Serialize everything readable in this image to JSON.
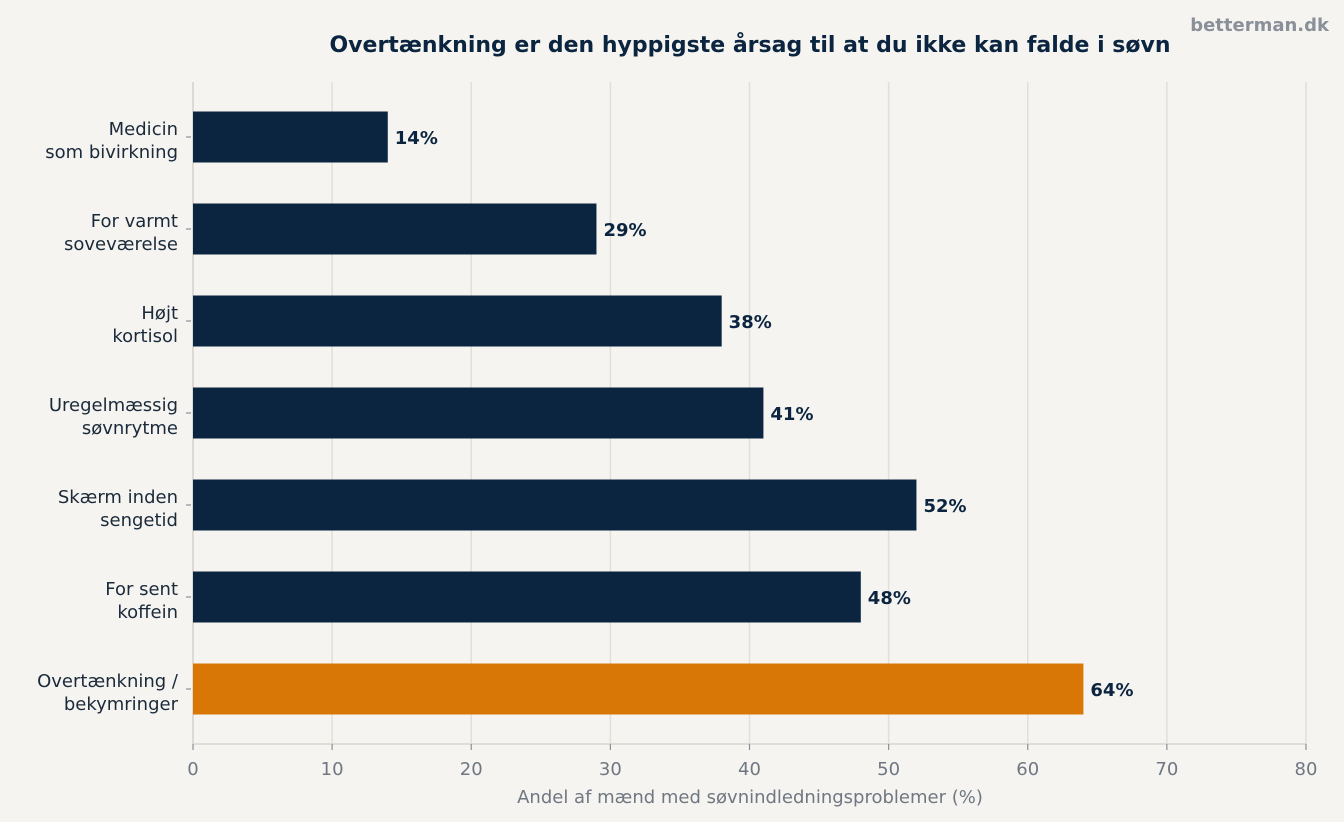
{
  "watermark": "betterman.dk",
  "chart_data": {
    "type": "bar",
    "orientation": "horizontal",
    "title": "Overtænkning er den hyppigste årsag til at du ikke kan falde i søvn",
    "xlabel": "Andel af mænd med søvnindledningsproblemer (%)",
    "ylabel": "",
    "xlim": [
      0,
      80
    ],
    "xticks": [
      "0",
      "10",
      "20",
      "30",
      "40",
      "50",
      "60",
      "70",
      "80"
    ],
    "grid": true,
    "categories": [
      [
        "Medicin",
        "som bivirkning"
      ],
      [
        "For varmt",
        "soveværelse"
      ],
      [
        "Højt",
        "kortisol"
      ],
      [
        "Uregelmæssig",
        "søvnrytme"
      ],
      [
        "Skærm inden",
        "sengetid"
      ],
      [
        "For sent",
        "koffein"
      ],
      [
        "Overtænkning /",
        "bekymringer"
      ]
    ],
    "values": [
      14,
      29,
      38,
      41,
      52,
      48,
      64
    ],
    "data_labels": [
      "14%",
      "29%",
      "38%",
      "41%",
      "52%",
      "48%",
      "64%"
    ],
    "bar_colors": [
      "#0b2540",
      "#0b2540",
      "#0b2540",
      "#0b2540",
      "#0b2540",
      "#0b2540",
      "#d97706"
    ],
    "colors": {
      "primary": "#0b2540",
      "highlight": "#d97706",
      "background": "#f5f4f0"
    }
  }
}
